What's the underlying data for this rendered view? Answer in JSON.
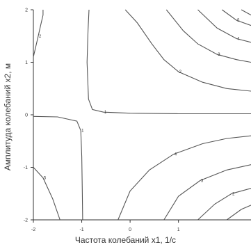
{
  "chart_data": {
    "type": "contour",
    "title": "",
    "xlabel": "Частота колебаний x1, 1/с",
    "ylabel": "Амплитуда колебаний x2, м",
    "xlim": [
      -2,
      2.5
    ],
    "ylim": [
      -2,
      2
    ],
    "x_ticks": [
      "-2",
      "-1",
      "0",
      "1"
    ],
    "y_ticks": [
      "-2",
      "-1",
      "0",
      "1",
      "2"
    ],
    "grid": false,
    "level_labels": [
      "1",
      "2",
      "3",
      "4",
      "5"
    ],
    "colors": {
      "line": "#555555",
      "axis": "#333333",
      "text": "#333333"
    }
  }
}
